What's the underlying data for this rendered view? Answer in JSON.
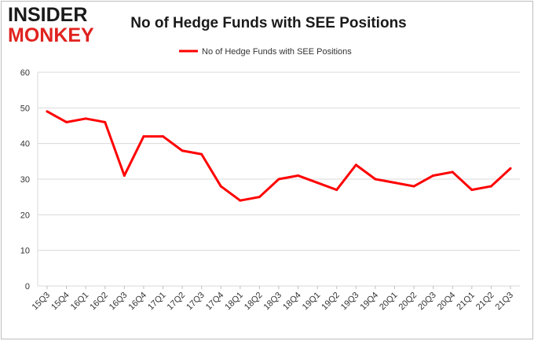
{
  "logo": {
    "line1": "INSIDER",
    "line2": "MONKEY"
  },
  "chart_data": {
    "type": "line",
    "title": "No of Hedge Funds with SEE Positions",
    "xlabel": "",
    "ylabel": "",
    "ylim": [
      0,
      60
    ],
    "yticks": [
      0,
      10,
      20,
      30,
      40,
      50,
      60
    ],
    "grid": true,
    "legend": "top-center",
    "categories": [
      "15Q3",
      "15Q4",
      "16Q1",
      "16Q2",
      "16Q3",
      "16Q4",
      "17Q1",
      "17Q2",
      "17Q3",
      "17Q4",
      "18Q1",
      "18Q2",
      "18Q3",
      "18Q4",
      "19Q1",
      "19Q2",
      "19Q3",
      "19Q4",
      "20Q1",
      "20Q2",
      "20Q3",
      "20Q4",
      "21Q1",
      "21Q2",
      "21Q3"
    ],
    "series": [
      {
        "name": "No of Hedge Funds with SEE Positions",
        "color": "#ff0000",
        "values": [
          49,
          46,
          47,
          46,
          31,
          42,
          42,
          38,
          37,
          28,
          24,
          25,
          30,
          31,
          29,
          27,
          34,
          30,
          29,
          28,
          31,
          32,
          27,
          28,
          33
        ]
      }
    ]
  }
}
